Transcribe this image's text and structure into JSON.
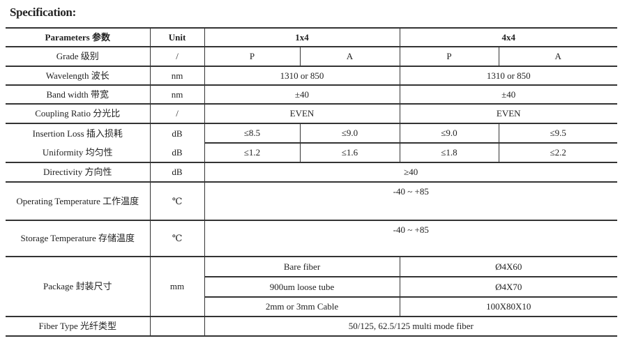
{
  "title": "Specification:",
  "header": {
    "param": "Parameters 参数",
    "unit": "Unit",
    "g1": "1x4",
    "g2": "4x4"
  },
  "rows": {
    "grade": {
      "label": "Grade 级别",
      "unit": "/",
      "v": [
        "P",
        "A",
        "P",
        "A"
      ]
    },
    "wavelength": {
      "label": "Wavelength 波长",
      "unit": "nm",
      "v": [
        "1310 or 850",
        "1310 or 850"
      ]
    },
    "bandwidth": {
      "label": "Band width 带宽",
      "unit": "nm",
      "v": [
        "±40",
        "±40"
      ]
    },
    "coupling": {
      "label": "Coupling Ratio 分光比",
      "unit": "/",
      "v": [
        "EVEN",
        "EVEN"
      ]
    },
    "insertion": {
      "label": "Insertion Loss 插入损耗",
      "unit": "dB",
      "v": [
        "≤8.5",
        "≤9.0",
        "≤9.0",
        "≤9.5"
      ]
    },
    "uniformity": {
      "label": "Uniformity 均匀性",
      "unit": "dB",
      "v": [
        "≤1.2",
        "≤1.6",
        "≤1.8",
        "≤2.2"
      ]
    },
    "directivity": {
      "label": "Directivity 方向性",
      "unit": "dB",
      "v": "≥40"
    },
    "operating": {
      "label": "Operating Temperature 工作温度",
      "unit": "℃",
      "v": "-40 ~ +85"
    },
    "storage": {
      "label": "Storage Temperature 存储温度",
      "unit": "℃",
      "v": "-40 ~ +85"
    },
    "package": {
      "label": "Package 封装尺寸",
      "unit": "mm",
      "items": [
        {
          "type": "Bare fiber",
          "size": "Ø4X60"
        },
        {
          "type": "900um loose tube",
          "size": "Ø4X70"
        },
        {
          "type": "2mm or 3mm Cable",
          "size": "100X80X10"
        }
      ]
    },
    "fiber": {
      "label": "Fiber Type 光纤类型",
      "unit": "",
      "v": "50/125, 62.5/125 multi mode fiber"
    }
  }
}
